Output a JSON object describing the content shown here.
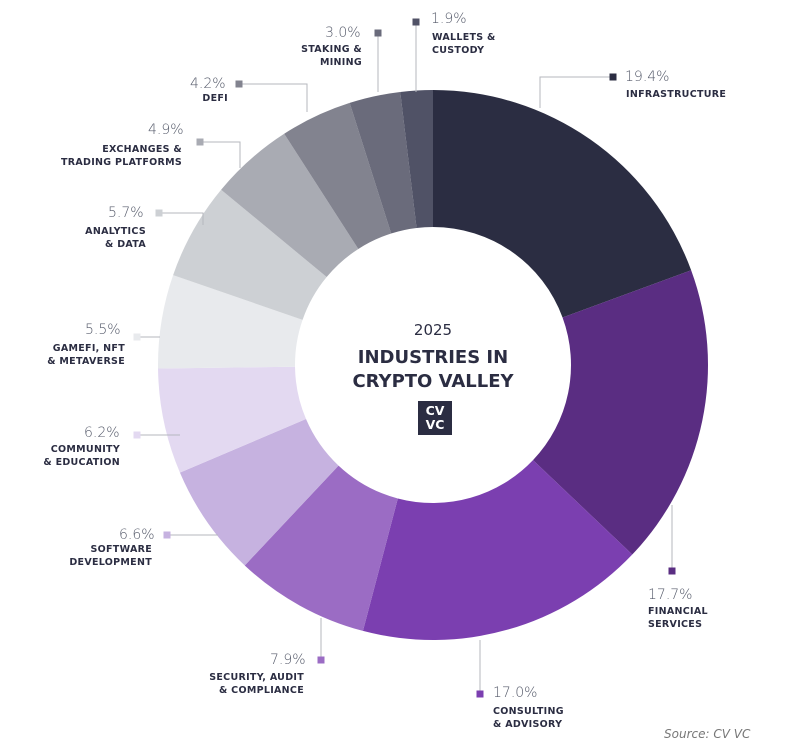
{
  "chart_data": {
    "type": "pie",
    "donut": true,
    "title": "INDUSTRIES IN CRYPTO VALLEY",
    "subtitle": "2025",
    "logo": "CVVC",
    "source": "Source: CV VC",
    "slices": [
      {
        "label": "INFRASTRUCTURE",
        "value": 19.4,
        "pct": "19.4%",
        "color": "#2b2d42"
      },
      {
        "label": "FINANCIAL\nSERVICES",
        "value": 17.7,
        "pct": "17.7%",
        "color": "#5a2d82"
      },
      {
        "label": "CONSULTING\n& ADVISORY",
        "value": 17.0,
        "pct": "17.0%",
        "color": "#7b3fb0"
      },
      {
        "label": "SECURITY, AUDIT\n& COMPLIANCE",
        "value": 7.9,
        "pct": "7.9%",
        "color": "#9b6cc4"
      },
      {
        "label": "SOFTWARE\nDEVELOPMENT",
        "value": 6.6,
        "pct": "6.6%",
        "color": "#c6b2e0"
      },
      {
        "label": "COMMUNITY\n& EDUCATION",
        "value": 6.2,
        "pct": "6.2%",
        "color": "#e3d9f1"
      },
      {
        "label": "GAMEFI, NFT\n& METAVERSE",
        "value": 5.5,
        "pct": "5.5%",
        "color": "#e8eaed"
      },
      {
        "label": "ANALYTICS\n& DATA",
        "value": 5.7,
        "pct": "5.7%",
        "color": "#cdd0d4"
      },
      {
        "label": "EXCHANGES &\nTRADING PLATFORMS",
        "value": 4.9,
        "pct": "4.9%",
        "color": "#a9abb3"
      },
      {
        "label": "DEFI",
        "value": 4.2,
        "pct": "4.2%",
        "color": "#82838f"
      },
      {
        "label": "STAKING &\nMINING",
        "value": 3.0,
        "pct": "3.0%",
        "color": "#6a6b7b"
      },
      {
        "label": "WALLETS &\nCUSTODY",
        "value": 1.9,
        "pct": "1.9%",
        "color": "#505266"
      }
    ]
  }
}
